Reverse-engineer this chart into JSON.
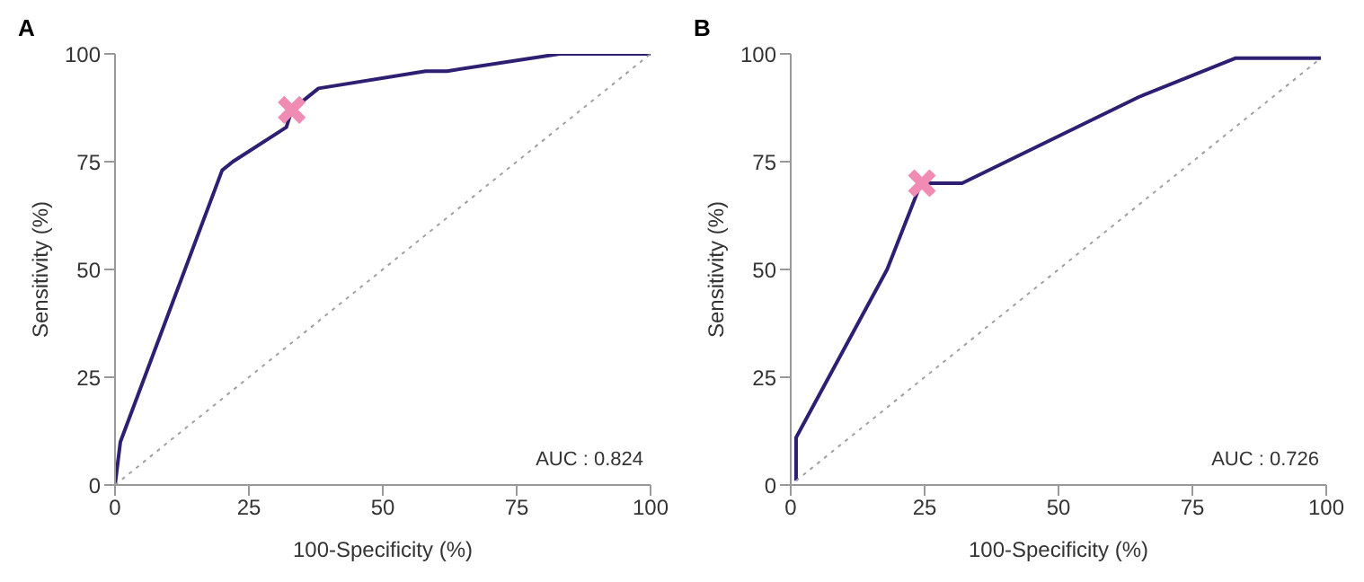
{
  "chart_data": [
    {
      "type": "line",
      "title": "A",
      "xlabel": "100-Specificity (%)",
      "ylabel": "Sensitivity (%)",
      "xlim": [
        0,
        100
      ],
      "xticks": [
        0,
        25,
        50,
        75,
        100
      ],
      "ylim": [
        0,
        100
      ],
      "yticks": [
        0,
        25,
        50,
        75,
        100
      ],
      "grid": false,
      "annotations": [
        "AUC : 0.824"
      ],
      "series": [
        {
          "color": "#2e1f73",
          "line_style": "solid",
          "marker": "none",
          "x": [
            0,
            1,
            20,
            22,
            32,
            33,
            38,
            58,
            62,
            83,
            100
          ],
          "values": [
            0,
            10,
            73,
            75,
            83,
            87,
            92,
            96,
            96,
            100,
            100
          ]
        },
        {
          "color": "#a0a0a0",
          "line_style": "dotted",
          "marker": "none",
          "x": [
            0,
            100
          ],
          "values": [
            0,
            100
          ]
        },
        {
          "type": "scatter",
          "color": "#f08cb4",
          "marker": "cross",
          "x": [
            33
          ],
          "values": [
            87
          ]
        }
      ]
    },
    {
      "type": "line",
      "title": "B",
      "xlabel": "100-Specificity (%)",
      "ylabel": "Sensitivity (%)",
      "xlim": [
        0,
        100
      ],
      "xticks": [
        0,
        25,
        50,
        75,
        100
      ],
      "ylim": [
        0,
        100
      ],
      "yticks": [
        0,
        25,
        50,
        75,
        100
      ],
      "grid": false,
      "annotations": [
        "AUC : 0.726"
      ],
      "series": [
        {
          "color": "#2e1f73",
          "line_style": "solid",
          "marker": "none",
          "x": [
            1,
            1,
            18,
            24,
            24.5,
            32,
            65,
            83,
            99
          ],
          "values": [
            1,
            11,
            50,
            69,
            70,
            70,
            90,
            99,
            99
          ]
        },
        {
          "color": "#a0a0a0",
          "line_style": "dotted",
          "marker": "none",
          "x": [
            1,
            99
          ],
          "values": [
            1,
            99
          ]
        },
        {
          "type": "scatter",
          "color": "#f08cb4",
          "marker": "cross",
          "x": [
            24.5
          ],
          "values": [
            70
          ]
        }
      ]
    }
  ]
}
